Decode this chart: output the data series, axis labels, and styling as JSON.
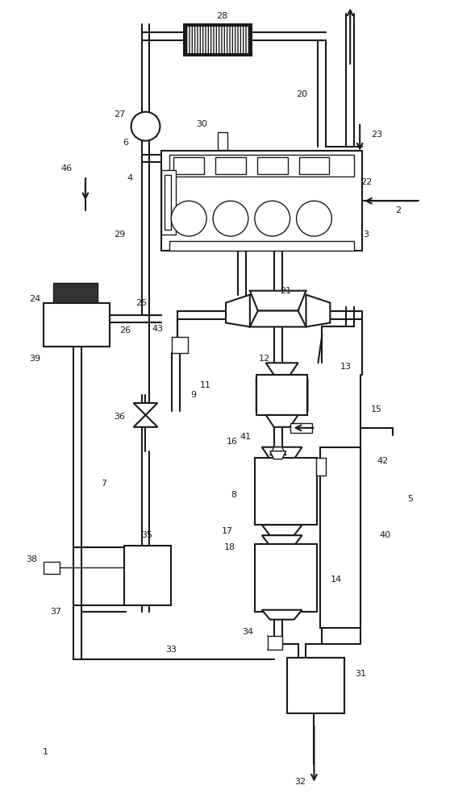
{
  "bg": "#ffffff",
  "lc": "#1a1a1a",
  "lw": 1.5,
  "lwt": 1.0,
  "fw": 5.58,
  "fh": 10.0
}
